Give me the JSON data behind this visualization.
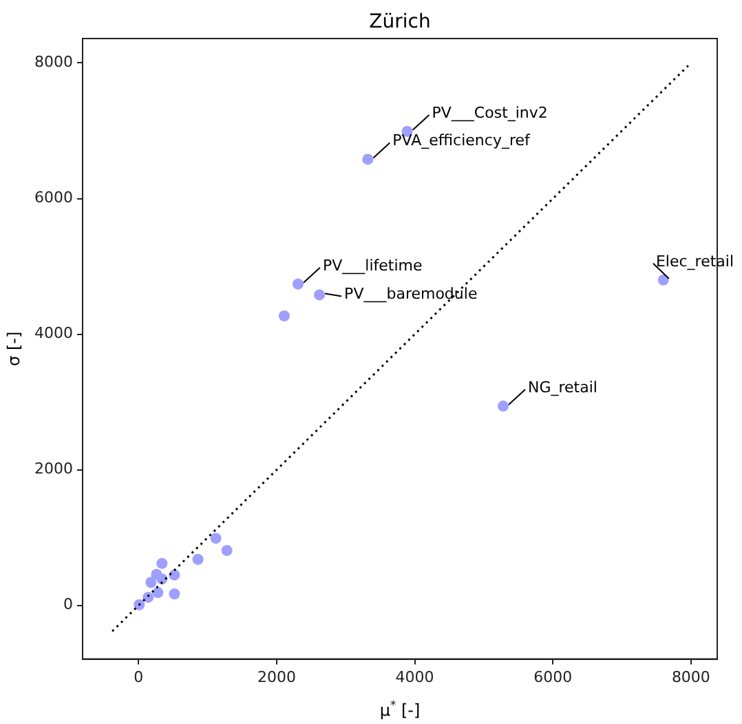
{
  "chart_data": {
    "type": "scatter",
    "title": "Zürich",
    "xlabel": "μ$^{*}$ [-]",
    "ylabel": "σ [-]",
    "xlim": [
      -810,
      8380
    ],
    "ylim": [
      -790,
      8360
    ],
    "xticks": [
      0,
      2000,
      4000,
      6000,
      8000
    ],
    "yticks": [
      0,
      2000,
      4000,
      6000,
      8000
    ],
    "grid": false,
    "legend": false,
    "marker": "circle",
    "series": [
      {
        "type": "line",
        "color": "#000000",
        "line_style": "dotted",
        "marker": "none",
        "x": [
          -380,
          7960
        ],
        "values": [
          -380,
          7960
        ]
      },
      {
        "type": "scatter",
        "color": "#9f9fff",
        "x": [
          3890,
          3320,
          2310,
          2620,
          2110,
          7600,
          5280,
          1120,
          1280,
          860,
          340,
          260,
          340,
          520,
          180,
          520,
          280,
          140,
          10
        ],
        "values": [
          6990,
          6580,
          4740,
          4580,
          4270,
          4800,
          2940,
          990,
          810,
          680,
          620,
          460,
          390,
          450,
          340,
          170,
          190,
          120,
          10
        ]
      }
    ],
    "annotations": [
      {
        "text": "PV___Cost_inv2",
        "x": 3890,
        "y": 6990
      },
      {
        "text": "PVA_efficiency_ref",
        "x": 3320,
        "y": 6580
      },
      {
        "text": "PV___lifetime",
        "x": 2310,
        "y": 4740
      },
      {
        "text": "PV___baremodule",
        "x": 2620,
        "y": 4580
      },
      {
        "text": "Elec_retail",
        "x": 7600,
        "y": 4800
      },
      {
        "text": "NG_retail",
        "x": 5280,
        "y": 2940
      }
    ]
  }
}
